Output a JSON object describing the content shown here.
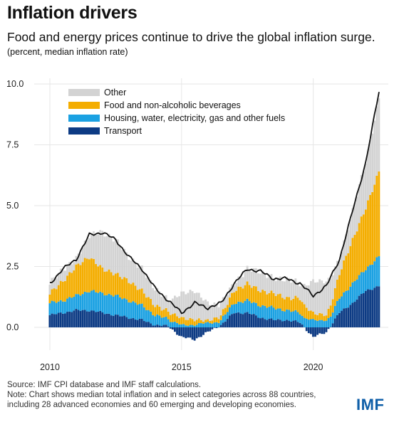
{
  "header": {
    "title": "Inflation drivers",
    "subtitle": "Food and energy prices continue to drive the global inflation surge.",
    "unit_note": "(percent, median inflation rate)"
  },
  "footer": {
    "source": "Source: IMF CPI database and IMF staff calculations.",
    "note_line1": "Note: Chart shows median total inflation and in select categories across 88 countries,",
    "note_line2": "including 28 advanced economies and 60 emerging and developing economies.",
    "logo": "IMF"
  },
  "colors": {
    "other": "#d3d3d3",
    "food": "#f4ad00",
    "housing": "#1ba1e2",
    "transport": "#0d3b84",
    "total": "#111111",
    "grid": "#e6e6e6"
  },
  "chart_data": {
    "type": "bar",
    "stacked": true,
    "frequency": "monthly",
    "x_start": "2010-01",
    "x_end": "2022-06",
    "x_ticks": [
      "2010",
      "2015",
      "2020"
    ],
    "ylim": [
      -0.8,
      10
    ],
    "y_ticks": [
      "0.0",
      "2.5",
      "5.0",
      "7.5",
      "10.0"
    ],
    "grid": true,
    "legend_position": "top-left",
    "line_series": "Total",
    "series": [
      {
        "name": "Other",
        "color_key": "other"
      },
      {
        "name": "Food and non-alcoholic beverages",
        "color_key": "food"
      },
      {
        "name": "Housing, water, electricity, gas and other fuels",
        "color_key": "housing"
      },
      {
        "name": "Transport",
        "color_key": "transport"
      }
    ],
    "key_points": {
      "t": [
        0,
        6,
        12,
        18,
        24,
        30,
        36,
        42,
        48,
        54,
        60,
        66,
        72,
        78,
        84,
        90,
        96,
        102,
        108,
        114,
        120,
        126,
        132,
        138,
        144,
        150
      ],
      "total": [
        1.8,
        2.4,
        2.8,
        3.8,
        3.9,
        3.6,
        2.9,
        2.4,
        1.6,
        1.1,
        0.6,
        1.0,
        0.8,
        1.0,
        1.8,
        2.4,
        2.3,
        2.0,
        2.0,
        1.8,
        1.3,
        1.7,
        2.8,
        4.8,
        6.8,
        9.7
      ],
      "transport": [
        0.5,
        0.6,
        0.7,
        0.7,
        0.6,
        0.5,
        0.4,
        0.3,
        0.1,
        0.05,
        -0.4,
        -0.5,
        -0.2,
        0.1,
        0.6,
        0.6,
        0.4,
        0.3,
        0.3,
        0.2,
        -0.4,
        -0.2,
        0.6,
        1.0,
        1.5,
        1.7
      ],
      "housing": [
        0.5,
        0.5,
        0.6,
        0.8,
        0.8,
        0.8,
        0.7,
        0.6,
        0.4,
        0.3,
        0.1,
        0.1,
        0.2,
        0.2,
        0.4,
        0.5,
        0.5,
        0.5,
        0.4,
        0.4,
        0.3,
        0.3,
        0.6,
        0.8,
        0.9,
        1.2
      ],
      "food": [
        0.4,
        0.8,
        1.2,
        1.4,
        1.0,
        0.9,
        0.8,
        0.6,
        0.4,
        0.3,
        0.3,
        0.2,
        0.1,
        0.2,
        0.5,
        0.7,
        0.6,
        0.6,
        0.5,
        0.6,
        0.3,
        0.2,
        1.0,
        1.8,
        2.5,
        3.5
      ],
      "other": [
        0.4,
        0.5,
        0.3,
        0.9,
        1.5,
        1.4,
        1.0,
        0.9,
        0.7,
        0.45,
        1.0,
        1.2,
        0.7,
        0.5,
        0.3,
        0.6,
        0.8,
        0.6,
        0.8,
        0.6,
        1.3,
        1.4,
        0.6,
        1.2,
        1.9,
        3.0
      ]
    }
  }
}
